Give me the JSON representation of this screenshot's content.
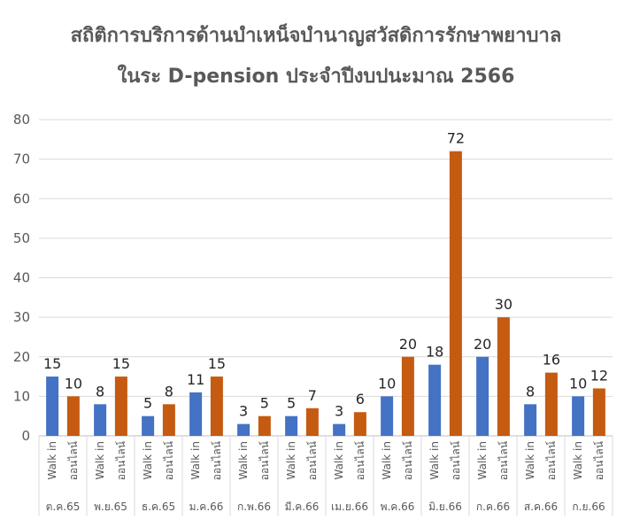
{
  "chart_data": {
    "type": "bar",
    "title": "สถิติการบริการด้านบำเหน็จบำนาญสวัสดิการรักษาพยาบาล",
    "subtitle": "ในระ D-pension ประจำปีงบปนะมาณ 2566",
    "ylim": [
      0,
      80
    ],
    "yticks": [
      0,
      10,
      20,
      30,
      40,
      50,
      60,
      70,
      80
    ],
    "grid": true,
    "categories": [
      "ต.ค.65",
      "พ.ย.65",
      "ธ.ค.65",
      "ม.ค.66",
      "ก.พ.66",
      "มี.ค.66",
      "เม.ย.66",
      "พ.ค.66",
      "มิ.ย.66",
      "ก.ค.66",
      "ส.ค.66",
      "ก.ย.66"
    ],
    "series": [
      {
        "name": "Walk in",
        "color": "#4472C4",
        "values": [
          15,
          8,
          5,
          11,
          3,
          5,
          3,
          10,
          18,
          20,
          8,
          10
        ]
      },
      {
        "name": "ออนไลน์",
        "color": "#C55A11",
        "values": [
          10,
          15,
          8,
          15,
          5,
          7,
          6,
          20,
          72,
          30,
          16,
          12
        ]
      }
    ]
  }
}
